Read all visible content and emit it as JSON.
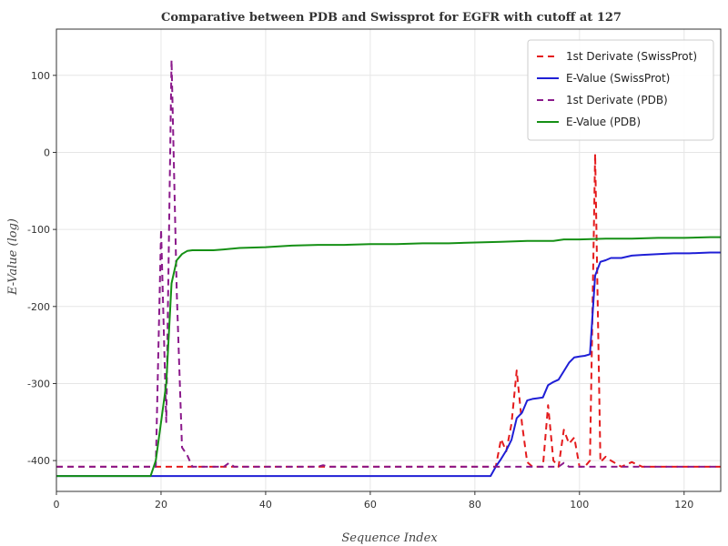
{
  "chart_data": {
    "type": "line",
    "title": "Comparative between PDB and Swissprot for EGFR with cutoff at 127",
    "xlabel": "Sequence Index",
    "ylabel": "E-Value (log)",
    "xlim": [
      0,
      127
    ],
    "ylim": [
      -440,
      160
    ],
    "xticks": [
      0,
      20,
      40,
      60,
      80,
      100,
      120
    ],
    "xtick_labels": [
      "0",
      "20",
      "40",
      "60",
      "80",
      "100",
      "120"
    ],
    "yticks": [
      100,
      0,
      -100,
      -200,
      -300,
      -400
    ],
    "ytick_labels": [
      "100",
      "0",
      "-100",
      "-200",
      "-300",
      "-400"
    ],
    "grid": true,
    "legend_position": "top-right",
    "series": [
      {
        "name": "1st Derivate (SwissProt)",
        "color": "#e41a1c",
        "style": "dashed",
        "points": [
          [
            0,
            -408
          ],
          [
            84,
            -408
          ],
          [
            85,
            -372
          ],
          [
            86,
            -388
          ],
          [
            87,
            -352
          ],
          [
            88,
            -283
          ],
          [
            89,
            -352
          ],
          [
            90,
            -402
          ],
          [
            91,
            -408
          ],
          [
            93,
            -408
          ],
          [
            94,
            -328
          ],
          [
            95,
            -400
          ],
          [
            96,
            -408
          ],
          [
            97,
            -360
          ],
          [
            98,
            -378
          ],
          [
            99,
            -370
          ],
          [
            100,
            -408
          ],
          [
            101,
            -408
          ],
          [
            102,
            -400
          ],
          [
            103,
            -2
          ],
          [
            104,
            -402
          ],
          [
            105,
            -395
          ],
          [
            106,
            -400
          ],
          [
            108,
            -408
          ],
          [
            110,
            -402
          ],
          [
            112,
            -408
          ],
          [
            127,
            -408
          ]
        ]
      },
      {
        "name": "E-Value (SwissProt)",
        "color": "#1f1fd6",
        "style": "solid",
        "points": [
          [
            0,
            -420
          ],
          [
            83,
            -420
          ],
          [
            84,
            -408
          ],
          [
            85,
            -398
          ],
          [
            86,
            -387
          ],
          [
            87,
            -373
          ],
          [
            88,
            -345
          ],
          [
            89,
            -338
          ],
          [
            90,
            -322
          ],
          [
            91,
            -320
          ],
          [
            92,
            -319
          ],
          [
            93,
            -318
          ],
          [
            94,
            -302
          ],
          [
            95,
            -298
          ],
          [
            96,
            -295
          ],
          [
            97,
            -284
          ],
          [
            98,
            -273
          ],
          [
            99,
            -266
          ],
          [
            100,
            -265
          ],
          [
            101,
            -264
          ],
          [
            102,
            -262
          ],
          [
            103,
            -160
          ],
          [
            104,
            -142
          ],
          [
            105,
            -140
          ],
          [
            106,
            -137
          ],
          [
            108,
            -137
          ],
          [
            110,
            -134
          ],
          [
            112,
            -133
          ],
          [
            115,
            -132
          ],
          [
            118,
            -131
          ],
          [
            121,
            -131
          ],
          [
            125,
            -130
          ],
          [
            127,
            -130
          ]
        ]
      },
      {
        "name": "1st Derivate (PDB)",
        "color": "#8b1a8b",
        "style": "dashed",
        "points": [
          [
            0,
            -408
          ],
          [
            18,
            -408
          ],
          [
            19,
            -408
          ],
          [
            20,
            -100
          ],
          [
            21,
            -350
          ],
          [
            22,
            120
          ],
          [
            23,
            -180
          ],
          [
            24,
            -383
          ],
          [
            25,
            -393
          ],
          [
            26,
            -408
          ],
          [
            32,
            -408
          ],
          [
            33,
            -403
          ],
          [
            34,
            -408
          ],
          [
            50,
            -408
          ],
          [
            51,
            -406
          ],
          [
            52,
            -408
          ],
          [
            80,
            -408
          ],
          [
            86,
            -408
          ],
          [
            96,
            -408
          ],
          [
            97,
            -403
          ],
          [
            98,
            -408
          ],
          [
            127,
            -408
          ]
        ]
      },
      {
        "name": "E-Value (PDB)",
        "color": "#159015",
        "style": "solid",
        "points": [
          [
            0,
            -420
          ],
          [
            18,
            -420
          ],
          [
            19,
            -400
          ],
          [
            20,
            -350
          ],
          [
            21,
            -300
          ],
          [
            22,
            -170
          ],
          [
            23,
            -140
          ],
          [
            24,
            -132
          ],
          [
            25,
            -128
          ],
          [
            26,
            -127
          ],
          [
            30,
            -127
          ],
          [
            32,
            -126
          ],
          [
            35,
            -124
          ],
          [
            40,
            -123
          ],
          [
            45,
            -121
          ],
          [
            50,
            -120
          ],
          [
            55,
            -120
          ],
          [
            60,
            -119
          ],
          [
            65,
            -119
          ],
          [
            70,
            -118
          ],
          [
            75,
            -118
          ],
          [
            80,
            -117
          ],
          [
            85,
            -116
          ],
          [
            90,
            -115
          ],
          [
            95,
            -115
          ],
          [
            97,
            -113
          ],
          [
            100,
            -113
          ],
          [
            105,
            -112
          ],
          [
            110,
            -112
          ],
          [
            115,
            -111
          ],
          [
            120,
            -111
          ],
          [
            125,
            -110
          ],
          [
            127,
            -110
          ]
        ]
      }
    ]
  }
}
